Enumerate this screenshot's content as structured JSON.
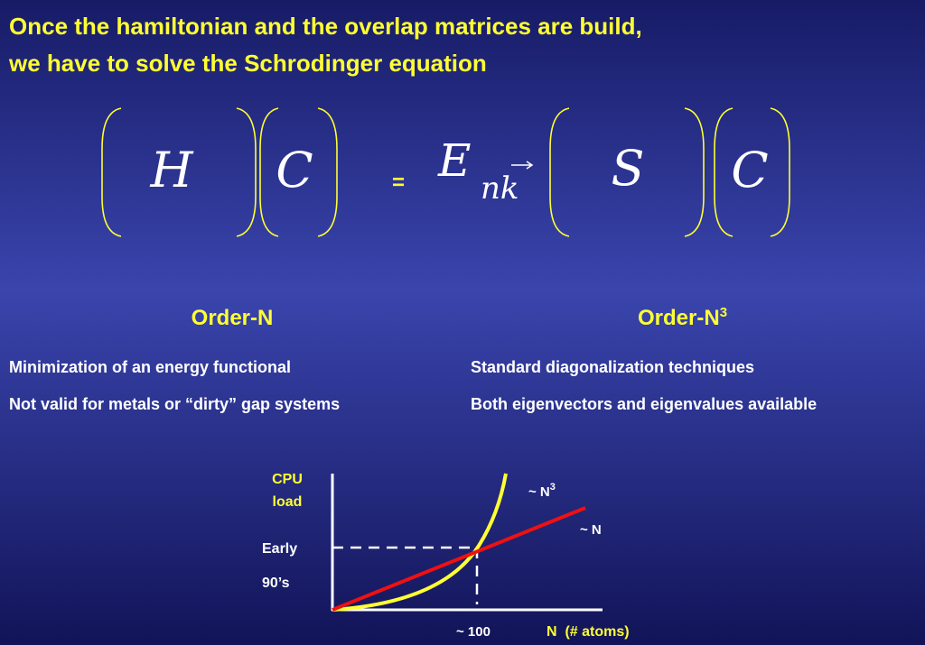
{
  "title": {
    "lines": [
      "Once the hamiltonian and the overlap matrices are build,",
      "we have to solve the Schrodinger equation"
    ]
  },
  "equation": {
    "h": "H",
    "c1": "C",
    "equals": "=",
    "e": "E",
    "sub": "nk",
    "s": "S",
    "c2": "C"
  },
  "left": {
    "heading": "Order-N",
    "items": [
      "Minimization of an energy functional",
      "Not valid for metals or “dirty” gap systems"
    ]
  },
  "right": {
    "heading": "Order-N",
    "heading_sup": "3",
    "items": [
      "Standard diagonalization techniques",
      "Both eigenvectors and eigenvalues available"
    ]
  },
  "graph": {
    "y_label": [
      "CPU",
      "load"
    ],
    "early": [
      "Early",
      "90’s"
    ],
    "cubic": "~ N",
    "cubic_sup": "3",
    "linear": "~ N",
    "crossover": "~ 100",
    "x_label": "N  (# atoms)"
  }
}
